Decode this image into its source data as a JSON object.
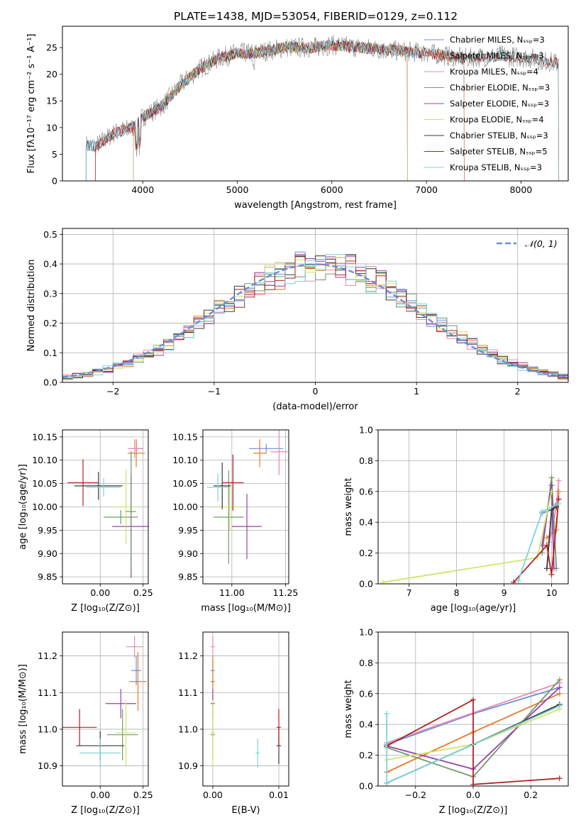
{
  "figure": {
    "title": "PLATE=1438, MJD=53054, FIBERID=0129, z=0.112"
  },
  "colors": {
    "palette": [
      "#6a8fd8",
      "#e97b2c",
      "#e98bb2",
      "#6f9a6b",
      "#9b3fb0",
      "#d3e36a",
      "#3a3a3a",
      "#b22222",
      "#7fd3d6",
      "#8a8a8a"
    ],
    "gaussian": "#6a8fd8"
  },
  "chart_data": [
    {
      "id": "spectrum",
      "type": "line",
      "xlabel": "wavelength [Angstrom, rest frame]",
      "ylabel": "Flux [fλ10⁻¹⁷ erg cm⁻² s⁻¹ A⁻¹]",
      "xlim": [
        3150,
        8500
      ],
      "ylim": [
        0,
        29
      ],
      "xticks": [
        4000,
        5000,
        6000,
        7000,
        8000
      ],
      "yticks": [
        0,
        5,
        10,
        15,
        20,
        25
      ],
      "grid": false,
      "legend_position": "right",
      "data_wavelength_range": [
        3400,
        8400
      ],
      "continuum_points": [
        [
          3400,
          6.8
        ],
        [
          3500,
          6.5
        ],
        [
          3700,
          9
        ],
        [
          3900,
          10
        ],
        [
          4000,
          12
        ],
        [
          4200,
          14
        ],
        [
          4400,
          18
        ],
        [
          4600,
          21
        ],
        [
          4800,
          23
        ],
        [
          5000,
          24
        ],
        [
          5200,
          24
        ],
        [
          5500,
          25
        ],
        [
          5800,
          25
        ],
        [
          6000,
          25.5
        ],
        [
          6300,
          25
        ],
        [
          6600,
          24.5
        ],
        [
          7000,
          24
        ],
        [
          7400,
          23
        ],
        [
          7800,
          23.5
        ],
        [
          8100,
          23
        ],
        [
          8400,
          22
        ]
      ],
      "series": [
        {
          "name": "Chabrier MILES, Nₛₛₚ=3",
          "color": "#6a8fd8",
          "range": [
            3400,
            7400
          ]
        },
        {
          "name": "Salpeter MILES, Nₛₛₚ=3",
          "color": "#e97b2c",
          "range": [
            3500,
            7400
          ]
        },
        {
          "name": "Kroupa MILES, Nₛₛₚ=4",
          "color": "#e98bb2",
          "range": [
            3500,
            6800
          ]
        },
        {
          "name": "Chabrier ELODIE, Nₛₛₚ=3",
          "color": "#6f9a6b",
          "range": [
            3900,
            6800
          ]
        },
        {
          "name": "Salpeter ELODIE, Nₛₛₚ=3",
          "color": "#9b3fb0",
          "range": [
            3900,
            6800
          ]
        },
        {
          "name": "Kroupa ELODIE, Nₛₛₚ=4",
          "color": "#d3e36a",
          "range": [
            3900,
            6800
          ]
        },
        {
          "name": "Chabrier STELIB, Nₛₛₚ=3",
          "color": "#3a3a3a",
          "range": [
            3400,
            8400
          ]
        },
        {
          "name": "Salpeter STELIB, Nₛₛₚ=5",
          "color": "#b22222",
          "range": [
            3500,
            8400
          ]
        },
        {
          "name": "Kroupa STELIB, Nₛₛₚ=3",
          "color": "#7fd3d6",
          "range": [
            3400,
            8400
          ]
        }
      ]
    },
    {
      "id": "residuals",
      "type": "area",
      "xlabel": "(data-model)/error",
      "ylabel": "Normed distribution",
      "xlim": [
        -2.5,
        2.5
      ],
      "ylim": [
        0,
        0.52
      ],
      "xticks": [
        -2,
        -1,
        0,
        1,
        2
      ],
      "yticks": [
        0.0,
        0.1,
        0.2,
        0.3,
        0.4,
        0.5
      ],
      "grid": true,
      "legend_position": "top-right",
      "legend_label": "𝒩(0, 1)",
      "bins": {
        "start": -2.5,
        "width": 0.1,
        "count": 50
      },
      "series_colors": [
        "#6a8fd8",
        "#e97b2c",
        "#e98bb2",
        "#6f9a6b",
        "#9b3fb0",
        "#d3e36a",
        "#3a3a3a",
        "#b22222",
        "#7fd3d6"
      ],
      "reference_curve": "normal(0,1)"
    },
    {
      "id": "age_vs_Z",
      "type": "scatter",
      "xlabel": "Z [log₁₀(Z/Z⊙)]",
      "ylabel": "age  [log₁₀(age/yr)]",
      "xlim": [
        -0.22,
        0.28
      ],
      "ylim": [
        9.835,
        10.165
      ],
      "xticks": [
        0.0,
        0.25
      ],
      "yticks": [
        9.85,
        9.9,
        9.95,
        10.0,
        10.05,
        10.1,
        10.15
      ],
      "grid": true,
      "points": [
        {
          "x": 0.21,
          "y": 10.125,
          "xerr": 0.04,
          "yerr": 0.015,
          "color": "#6a8fd8"
        },
        {
          "x": 0.21,
          "y": 10.115,
          "xerr": 0.05,
          "yerr": 0.03,
          "color": "#e97b2c"
        },
        {
          "x": 0.2,
          "y": 10.125,
          "xerr": 0.04,
          "yerr": 0.02,
          "color": "#e98bb2"
        },
        {
          "x": 0.12,
          "y": 9.978,
          "xerr": 0.1,
          "yerr": 0.015,
          "color": "#6f9a6b"
        },
        {
          "x": 0.18,
          "y": 9.958,
          "xerr": 0.11,
          "yerr": 0.11,
          "color": "#9b3fb0"
        },
        {
          "x": 0.15,
          "y": 10.0,
          "xerr": 0.06,
          "yerr": 0.08,
          "color": "#d3e36a"
        },
        {
          "x": -0.01,
          "y": 10.045,
          "xerr": 0.14,
          "yerr": 0.03,
          "color": "#3a3a3a"
        },
        {
          "x": -0.1,
          "y": 10.052,
          "xerr": 0.09,
          "yerr": 0.05,
          "color": "#b22222"
        },
        {
          "x": 0.02,
          "y": 10.042,
          "xerr": 0.1,
          "yerr": 0.02,
          "color": "#7fd3d6"
        },
        {
          "x": 0.18,
          "y": 9.99,
          "xerr": 0.03,
          "yerr": 0.13,
          "color": "#6f9a6b"
        }
      ]
    },
    {
      "id": "age_vs_mass",
      "type": "scatter",
      "xlabel": "mass [log₁₀(M/M⊙)]",
      "ylabel": "",
      "xlim": [
        10.865,
        11.265
      ],
      "ylim": [
        9.835,
        10.165
      ],
      "xticks": [
        11.0,
        11.25
      ],
      "yticks": [
        9.85,
        9.9,
        9.95,
        10.0,
        10.05,
        10.1,
        10.15
      ],
      "grid": true,
      "points": [
        {
          "x": 11.16,
          "y": 10.125,
          "xerr": 0.08,
          "yerr": 0.01,
          "color": "#6a8fd8"
        },
        {
          "x": 11.13,
          "y": 10.115,
          "xerr": 0.03,
          "yerr": 0.03,
          "color": "#e97b2c"
        },
        {
          "x": 11.22,
          "y": 10.118,
          "xerr": 0.04,
          "yerr": 0.05,
          "color": "#e98bb2"
        },
        {
          "x": 10.985,
          "y": 9.978,
          "xerr": 0.07,
          "yerr": 0.1,
          "color": "#6f9a6b"
        },
        {
          "x": 11.07,
          "y": 9.958,
          "xerr": 0.07,
          "yerr": 0.07,
          "color": "#9b3fb0"
        },
        {
          "x": 10.99,
          "y": 10.0,
          "xerr": 0.05,
          "yerr": 0.05,
          "color": "#d3e36a"
        },
        {
          "x": 10.955,
          "y": 10.045,
          "xerr": 0.04,
          "yerr": 0.05,
          "color": "#3a3a3a"
        },
        {
          "x": 11.005,
          "y": 10.052,
          "xerr": 0.05,
          "yerr": 0.06,
          "color": "#b22222"
        },
        {
          "x": 10.935,
          "y": 10.042,
          "xerr": 0.05,
          "yerr": 0.03,
          "color": "#7fd3d6"
        }
      ]
    },
    {
      "id": "sfh_age",
      "type": "line",
      "xlabel": "age  [log₁₀(age/yr)]",
      "ylabel": "mass weight",
      "xlim": [
        6.35,
        10.35
      ],
      "ylim": [
        0,
        1.0
      ],
      "xticks": [
        7,
        8,
        9,
        10
      ],
      "yticks": [
        0.0,
        0.2,
        0.4,
        0.6,
        0.8,
        1.0
      ],
      "grid": true,
      "series": [
        {
          "color": "#6a8fd8",
          "points": [
            [
              9.8,
              0.46
            ],
            [
              10.0,
              0.48
            ],
            [
              10.15,
              0.55
            ]
          ]
        },
        {
          "color": "#e97b2c",
          "points": [
            [
              9.9,
              0.3
            ],
            [
              10.1,
              0.35
            ],
            [
              10.15,
              0.6
            ]
          ]
        },
        {
          "color": "#e98bb2",
          "points": [
            [
              9.95,
              0.27
            ],
            [
              10.1,
              0.5
            ],
            [
              10.15,
              0.67
            ]
          ]
        },
        {
          "color": "#6f9a6b",
          "points": [
            [
              9.8,
              0.2
            ],
            [
              10.0,
              0.69
            ],
            [
              10.1,
              0.1
            ]
          ]
        },
        {
          "color": "#9b3fb0",
          "points": [
            [
              9.8,
              0.25
            ],
            [
              10.0,
              0.64
            ],
            [
              10.05,
              0.1
            ]
          ]
        },
        {
          "color": "#d3e36a",
          "points": [
            [
              6.45,
              0.01
            ],
            [
              9.7,
              0.17
            ],
            [
              10.0,
              0.6
            ]
          ]
        },
        {
          "color": "#3a3a3a",
          "points": [
            [
              9.9,
              0.1
            ],
            [
              10.0,
              0.48
            ],
            [
              10.1,
              0.5
            ]
          ]
        },
        {
          "color": "#b22222",
          "points": [
            [
              9.2,
              0.01
            ],
            [
              9.9,
              0.25
            ],
            [
              10.0,
              0.06
            ],
            [
              10.15,
              0.55
            ]
          ]
        },
        {
          "color": "#7fd3d6",
          "points": [
            [
              9.3,
              0.02
            ],
            [
              9.8,
              0.47
            ],
            [
              10.15,
              0.52
            ]
          ]
        }
      ]
    },
    {
      "id": "mass_vs_Z",
      "type": "scatter",
      "xlabel": "Z [log₁₀(Z/Z⊙)]",
      "ylabel": "mass [log₁₀(M/M⊙)]",
      "xlim": [
        -0.22,
        0.28
      ],
      "ylim": [
        10.845,
        11.265
      ],
      "xticks": [
        0.0,
        0.25
      ],
      "yticks": [
        10.9,
        11.0,
        11.1,
        11.2
      ],
      "grid": true,
      "points": [
        {
          "x": 0.21,
          "y": 11.16,
          "xerr": 0.03,
          "yerr": 0.04,
          "color": "#6a8fd8"
        },
        {
          "x": 0.22,
          "y": 11.13,
          "xerr": 0.05,
          "yerr": 0.08,
          "color": "#e97b2c"
        },
        {
          "x": 0.2,
          "y": 11.225,
          "xerr": 0.05,
          "yerr": 0.03,
          "color": "#e98bb2"
        },
        {
          "x": 0.13,
          "y": 10.985,
          "xerr": 0.09,
          "yerr": 0.07,
          "color": "#6f9a6b"
        },
        {
          "x": 0.12,
          "y": 11.07,
          "xerr": 0.09,
          "yerr": 0.04,
          "color": "#9b3fb0"
        },
        {
          "x": 0.15,
          "y": 10.99,
          "xerr": 0.06,
          "yerr": 0.09,
          "color": "#d3e36a"
        },
        {
          "x": 0.0,
          "y": 10.955,
          "xerr": 0.14,
          "yerr": 0.04,
          "color": "#3a3a3a"
        },
        {
          "x": -0.12,
          "y": 11.005,
          "xerr": 0.1,
          "yerr": 0.05,
          "color": "#b22222"
        },
        {
          "x": 0.0,
          "y": 10.935,
          "xerr": 0.12,
          "yerr": 0.04,
          "color": "#7fd3d6"
        }
      ]
    },
    {
      "id": "mass_vs_ebv",
      "type": "scatter",
      "xlabel": "E(B-V)",
      "ylabel": "",
      "xlim": [
        -0.0015,
        0.0115
      ],
      "ylim": [
        10.845,
        11.265
      ],
      "xticks": [
        0.0,
        0.01
      ],
      "yticks": [
        10.9,
        11.0,
        11.1,
        11.2
      ],
      "grid": true,
      "points": [
        {
          "x": 0.0,
          "y": 11.16,
          "yerr": 0.04,
          "color": "#6a8fd8"
        },
        {
          "x": 0.0,
          "y": 11.13,
          "yerr": 0.07,
          "color": "#e97b2c"
        },
        {
          "x": 0.0,
          "y": 11.225,
          "yerr": 0.03,
          "color": "#e98bb2"
        },
        {
          "x": 0.0,
          "y": 10.985,
          "yerr": 0.07,
          "color": "#6f9a6b"
        },
        {
          "x": 0.0,
          "y": 11.07,
          "yerr": 0.04,
          "color": "#9b3fb0"
        },
        {
          "x": 0.0,
          "y": 10.99,
          "yerr": 0.09,
          "color": "#d3e36a"
        },
        {
          "x": 0.01,
          "y": 10.955,
          "yerr": 0.05,
          "color": "#3a3a3a"
        },
        {
          "x": 0.01,
          "y": 11.005,
          "yerr": 0.05,
          "color": "#b22222"
        },
        {
          "x": 0.0068,
          "y": 10.935,
          "yerr": 0.04,
          "color": "#7fd3d6"
        }
      ]
    },
    {
      "id": "sfh_Z",
      "type": "line",
      "xlabel": "Z [log₁₀(Z/Z⊙)]",
      "ylabel": "mass weight",
      "xlim": [
        -0.33,
        0.33
      ],
      "ylim": [
        0,
        1.0
      ],
      "xticks": [
        -0.2,
        0.0,
        0.2
      ],
      "yticks": [
        0.0,
        0.2,
        0.4,
        0.6,
        0.8,
        1.0
      ],
      "grid": true,
      "series": [
        {
          "color": "#6a8fd8",
          "points": [
            [
              -0.3,
              0.27
            ],
            [
              0.0,
              0.47
            ],
            [
              0.3,
              0.64
            ]
          ]
        },
        {
          "color": "#e97b2c",
          "points": [
            [
              -0.3,
              0.09
            ],
            [
              0.0,
              0.35
            ],
            [
              0.3,
              0.6
            ]
          ]
        },
        {
          "color": "#e98bb2",
          "points": [
            [
              -0.3,
              0.28
            ],
            [
              0.3,
              0.67
            ]
          ]
        },
        {
          "color": "#6f9a6b",
          "points": [
            [
              -0.3,
              0.25
            ],
            [
              0.0,
              0.06
            ],
            [
              0.3,
              0.69
            ]
          ]
        },
        {
          "color": "#9b3fb0",
          "points": [
            [
              -0.3,
              0.26
            ],
            [
              0.0,
              0.11
            ],
            [
              0.3,
              0.64
            ]
          ]
        },
        {
          "color": "#d3e36a",
          "points": [
            [
              -0.3,
              0.17
            ],
            [
              0.0,
              0.27
            ],
            [
              0.3,
              0.5
            ]
          ]
        },
        {
          "color": "#3a3a3a",
          "points": [
            [
              -0.3,
              0.02
            ],
            [
              0.0,
              0.27
            ],
            [
              0.3,
              0.53
            ]
          ]
        },
        {
          "color": "#b22222",
          "points": [
            [
              -0.3,
              0.26
            ],
            [
              0.0,
              0.56
            ],
            [
              0.0,
              0.01
            ],
            [
              0.3,
              0.05
            ]
          ]
        },
        {
          "color": "#7fd3d6",
          "points": [
            [
              -0.3,
              0.47
            ],
            [
              -0.3,
              0.02
            ],
            [
              0.3,
              0.52
            ]
          ]
        }
      ]
    }
  ]
}
